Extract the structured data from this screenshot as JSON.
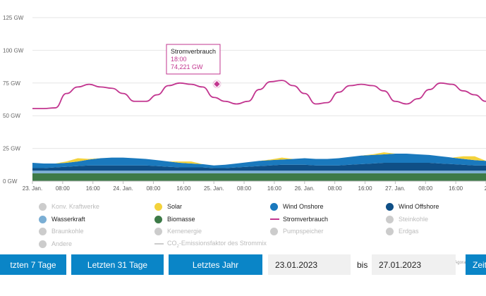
{
  "chart_data": {
    "type": "area",
    "yticks": [
      "125 GW",
      "100 GW",
      "75 GW",
      "50 GW",
      "25 GW",
      "0 GW"
    ],
    "ylim": [
      0,
      125
    ],
    "xticks": [
      "23. Jan.",
      "08:00",
      "16:00",
      "24. Jan.",
      "08:00",
      "16:00",
      "25. Jan.",
      "08:00",
      "16:00",
      "26. Jan.",
      "08:00",
      "16:00",
      "27. Jan.",
      "08:00",
      "16:00",
      "2"
    ],
    "x": [
      0,
      3,
      6,
      9,
      12,
      15,
      18,
      21,
      24,
      27,
      30,
      33,
      36,
      39,
      42,
      45,
      48,
      51,
      54,
      57,
      60,
      63,
      66,
      69,
      72,
      75,
      78,
      81,
      84,
      87,
      90,
      93,
      96,
      99,
      102,
      105,
      108,
      111,
      114,
      117,
      120
    ],
    "series": [
      {
        "name": "Stromverbrauch",
        "color": "#c2358f",
        "kind": "line",
        "values": [
          55.5,
          55.5,
          56,
          67,
          72,
          74,
          72,
          71,
          67,
          61,
          61,
          66,
          73,
          75,
          74,
          72,
          64,
          61,
          59,
          61,
          70,
          76,
          77,
          73,
          67,
          59,
          60,
          68,
          73,
          74,
          73,
          69,
          61,
          59,
          63,
          70,
          75,
          74,
          69,
          66,
          61
        ]
      },
      {
        "name": "Biomasse",
        "color": "#3d7a47",
        "kind": "area",
        "values": [
          6,
          6,
          6,
          6,
          6,
          6,
          6,
          6,
          6,
          6,
          6,
          6,
          6,
          6,
          6,
          6,
          6,
          6,
          6,
          6,
          6,
          6,
          6,
          6,
          6,
          6,
          6,
          6,
          6,
          6,
          6,
          6,
          6,
          6,
          6,
          6,
          6,
          6,
          6,
          6,
          6
        ]
      },
      {
        "name": "Wasserkraft",
        "color": "#7aaed4",
        "kind": "area",
        "values": [
          2,
          2,
          2,
          2,
          2,
          2,
          2,
          2,
          2,
          2,
          2,
          2,
          2,
          2,
          2,
          2,
          2,
          2,
          2,
          2,
          2,
          2,
          2,
          2,
          2,
          2,
          2,
          2,
          2,
          2,
          2,
          2,
          2,
          2,
          2,
          2,
          2,
          2,
          2,
          2,
          2
        ]
      },
      {
        "name": "Wind Offshore",
        "color": "#0f4f86",
        "kind": "area",
        "values": [
          2,
          2,
          2.5,
          3,
          3.5,
          4,
          4,
          4,
          4,
          4,
          4,
          3.5,
          3,
          2.5,
          2.5,
          2.5,
          2,
          2,
          2.5,
          3,
          3.5,
          4,
          4.5,
          4.5,
          4.5,
          4,
          4,
          4,
          4.5,
          5,
          5.5,
          6,
          6,
          6,
          6,
          6,
          5.5,
          5,
          4.5,
          4,
          4
        ]
      },
      {
        "name": "Wind Onshore",
        "color": "#1a79bd",
        "kind": "area",
        "values": [
          4,
          3.5,
          3,
          3,
          3.5,
          4.5,
          5.5,
          6,
          6,
          5.5,
          5,
          4.5,
          4,
          3.5,
          3,
          2.5,
          2,
          2.5,
          3,
          3.5,
          4,
          4,
          4,
          4.5,
          5,
          5,
          5,
          5.5,
          6,
          6.5,
          6.5,
          6.5,
          7,
          7,
          6.5,
          6,
          5.5,
          5,
          4.5,
          4,
          3.5
        ]
      },
      {
        "name": "Solar",
        "color": "#f3d23b",
        "kind": "area",
        "values": [
          0,
          0,
          0,
          1,
          2.5,
          0.5,
          0,
          0,
          0,
          0,
          0,
          0,
          0,
          1,
          1.5,
          0,
          0,
          0,
          0,
          0,
          0,
          0.5,
          1.5,
          0,
          0,
          0,
          0,
          0,
          0,
          0,
          0.5,
          1.5,
          0,
          0,
          0,
          0,
          0,
          0,
          2,
          3,
          0
        ]
      }
    ],
    "tooltip": {
      "title": "Stromverbrauch",
      "time": "18:00",
      "value": "74,221 GW",
      "x": 48.8,
      "y": 74.221
    }
  },
  "legend": [
    {
      "label": "Konv. Kraftwerke",
      "color": "#cccccc",
      "active": false,
      "marker": "dot"
    },
    {
      "label": "Solar",
      "color": "#f3d23b",
      "active": true,
      "marker": "dot"
    },
    {
      "label": "Wind Onshore",
      "color": "#1a79bd",
      "active": true,
      "marker": "dot"
    },
    {
      "label": "Wind Offshore",
      "color": "#0f4f86",
      "active": true,
      "marker": "dot"
    },
    {
      "label": "Wasserkraft",
      "color": "#7aaed4",
      "active": true,
      "marker": "dot"
    },
    {
      "label": "Biomasse",
      "color": "#3d7a47",
      "active": true,
      "marker": "dot"
    },
    {
      "label": "Stromverbrauch",
      "color": "#c2358f",
      "active": true,
      "marker": "line"
    },
    {
      "label": "Steinkohle",
      "color": "#cccccc",
      "active": false,
      "marker": "dot"
    },
    {
      "label": "Braunkohle",
      "color": "#cccccc",
      "active": false,
      "marker": "dot"
    },
    {
      "label": "Kernenergie",
      "color": "#cccccc",
      "active": false,
      "marker": "dot"
    },
    {
      "label": "Pumpspeicher",
      "color": "#cccccc",
      "active": false,
      "marker": "dot"
    },
    {
      "label": "Erdgas",
      "color": "#cccccc",
      "active": false,
      "marker": "dot"
    },
    {
      "label": "Andere",
      "color": "#cccccc",
      "active": false,
      "marker": "dot"
    },
    {
      "label": "CO",
      "label_sub": "2",
      "label_rest": "-Emissionsfaktor des Strommix",
      "color": "#cccccc",
      "active": false,
      "marker": "line"
    }
  ],
  "credit": "Agora Energiew",
  "controls": {
    "btn_7": "tzten 7 Tage",
    "btn_31": "Letzten 31 Tage",
    "btn_year": "Letztes Jahr",
    "date_from": "23.01.2023",
    "bis": "bis",
    "date_to": "27.01.2023",
    "btn_cut": "Zeit"
  },
  "colors": {
    "accent": "#0a85c7",
    "grid": "#e6e6e6"
  }
}
